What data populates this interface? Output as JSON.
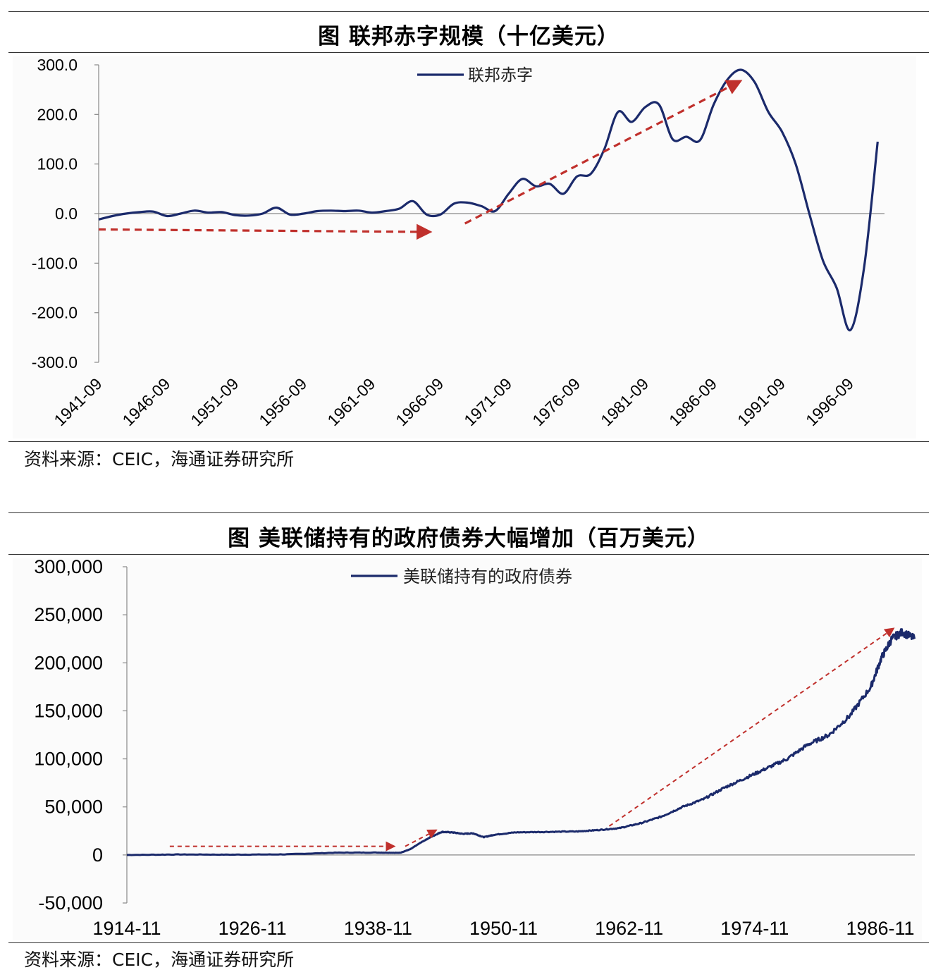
{
  "chart1": {
    "title": "图 联邦赤字规模（十亿美元）",
    "source": "资料来源：CEIC，海通证券研究所"
  },
  "chart2": {
    "title": "图 美联储持有的政府债券大幅增加（百万美元）",
    "source": "资料来源：CEIC，海通证券研究所"
  },
  "colors": {
    "line": "#1b2a6b",
    "arrow": "#c0302c",
    "axis": "#888888"
  },
  "chart_data": [
    {
      "type": "line",
      "title": "图 联邦赤字规模（十亿美元）",
      "legend": [
        "联邦赤字"
      ],
      "xlabel": "",
      "ylabel": "",
      "ylim": [
        -300,
        300
      ],
      "yticks": [
        300,
        200,
        100,
        0,
        -100,
        -200,
        -300
      ],
      "ytick_labels": [
        "300.0",
        "200.0",
        "100.0",
        "0.0",
        "-100.0",
        "-200.0",
        "-300.0"
      ],
      "xtick_labels": [
        "1941-09",
        "1946-09",
        "1951-09",
        "1956-09",
        "1961-09",
        "1966-09",
        "1971-09",
        "1976-09",
        "1981-09",
        "1986-09",
        "1991-09",
        "1996-09"
      ],
      "series": [
        {
          "name": "联邦赤字",
          "x": [
            1941.7,
            1942.7,
            1943.7,
            1944.7,
            1945.7,
            1946.7,
            1947.7,
            1948.7,
            1949.7,
            1950.7,
            1951.7,
            1952.7,
            1953.7,
            1954.7,
            1955.7,
            1956.7,
            1957.7,
            1958.7,
            1959.7,
            1960.7,
            1961.7,
            1962.7,
            1963.7,
            1964.7,
            1965.7,
            1966.7,
            1967.7,
            1968.7,
            1969.7,
            1970.7,
            1971.7,
            1972.7,
            1973.7,
            1974.7,
            1975.7,
            1976.7,
            1977.7,
            1978.7,
            1979.7,
            1980.7,
            1981.7,
            1982.7,
            1983.7,
            1984.7,
            1985.7,
            1986.7,
            1987.7,
            1988.7,
            1989.7,
            1990.7,
            1991.7,
            1992.7,
            1993.7,
            1994.7,
            1995.7,
            1996.7,
            1997.7,
            1998.7
          ],
          "values": [
            -12,
            -5,
            0,
            3,
            4,
            -5,
            0,
            6,
            2,
            3,
            -3,
            -4,
            0,
            12,
            -2,
            0,
            5,
            6,
            5,
            6,
            2,
            5,
            10,
            25,
            -2,
            -2,
            20,
            22,
            15,
            5,
            40,
            70,
            55,
            60,
            40,
            75,
            80,
            130,
            205,
            185,
            215,
            220,
            150,
            155,
            148,
            220,
            270,
            290,
            265,
            205,
            165,
            100,
            0,
            -95,
            -150,
            -235,
            -110,
            145
          ]
        }
      ],
      "annotations": [
        {
          "type": "arrow",
          "from": [
            1941.7,
            -32
          ],
          "to": [
            1966.0,
            -37
          ]
        },
        {
          "type": "arrow",
          "from": [
            1968.5,
            -20
          ],
          "to": [
            1988.7,
            268
          ]
        }
      ]
    },
    {
      "type": "line",
      "title": "图 美联储持有的政府债券大幅增加（百万美元）",
      "legend": [
        "美联储持有的政府债券"
      ],
      "xlabel": "",
      "ylabel": "",
      "ylim": [
        -50000,
        300000
      ],
      "yticks": [
        300000,
        250000,
        200000,
        150000,
        100000,
        50000,
        0,
        -50000
      ],
      "ytick_labels": [
        "300,000",
        "250,000",
        "200,000",
        "150,000",
        "100,000",
        "50,000",
        "0",
        "-50,000"
      ],
      "xtick_labels": [
        "1914-11",
        "1926-11",
        "1938-11",
        "1950-11",
        "1962-11",
        "1974-11",
        "1986-11"
      ],
      "series": [
        {
          "name": "美联储持有的政府债券",
          "x": [
            1914.9,
            1920,
            1925,
            1930,
            1935,
            1939,
            1941,
            1942,
            1943,
            1944,
            1945,
            1946,
            1947,
            1948,
            1949,
            1950,
            1952,
            1955,
            1958,
            1960,
            1962,
            1964,
            1966,
            1968,
            1970,
            1972,
            1974,
            1976,
            1978,
            1980,
            1982,
            1984,
            1986,
            1987,
            1988,
            1989,
            1990.2
          ],
          "values": [
            0,
            500,
            300,
            600,
            2400,
            2500,
            2200,
            6000,
            13000,
            19000,
            24000,
            23500,
            22000,
            22500,
            18500,
            21000,
            23500,
            24000,
            24500,
            26000,
            28000,
            33000,
            40000,
            50000,
            58000,
            70000,
            80000,
            90000,
            100000,
            115000,
            125000,
            145000,
            175000,
            205000,
            225000,
            232000,
            225000
          ]
        }
      ],
      "annotations": [
        {
          "type": "arrow",
          "from": [
            1919.0,
            9000
          ],
          "to": [
            1940.5,
            9000
          ]
        },
        {
          "type": "arrow",
          "from": [
            1941.5,
            9000
          ],
          "to": [
            1944.5,
            26000
          ]
        },
        {
          "type": "arrow",
          "from": [
            1961.0,
            30000
          ],
          "to": [
            1988.2,
            236000
          ]
        }
      ]
    }
  ]
}
